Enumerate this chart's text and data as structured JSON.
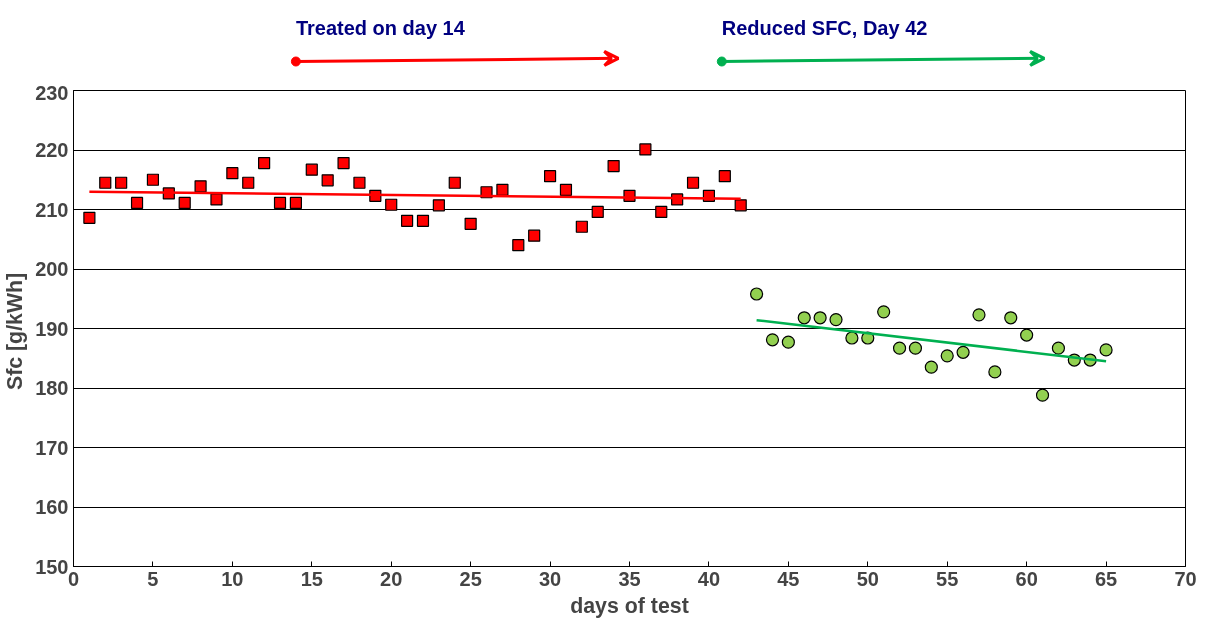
{
  "chart_data": {
    "type": "scatter",
    "xlabel": "days of test",
    "ylabel": "Sfc  [g/kWh]",
    "xlim": [
      0,
      70
    ],
    "ylim": [
      150,
      230
    ],
    "xticks": [
      0,
      5,
      10,
      15,
      20,
      25,
      30,
      35,
      40,
      45,
      50,
      55,
      60,
      65,
      70
    ],
    "yticks": [
      150,
      160,
      170,
      180,
      190,
      200,
      210,
      220,
      230
    ],
    "grid": "y",
    "annotations": [
      "Treated on day 14",
      "Reduced SFC, Day 42"
    ],
    "series": [
      {
        "marker": "square",
        "color": "#ff0000",
        "x": [
          1,
          2,
          3,
          4,
          5,
          6,
          7,
          8,
          9,
          10,
          11,
          12,
          13,
          14,
          15,
          16,
          17,
          18,
          19,
          20,
          21,
          22,
          23,
          24,
          25,
          26,
          27,
          28,
          29,
          30,
          31,
          32,
          33,
          34,
          35,
          36,
          37,
          38,
          39,
          40,
          41,
          42
        ],
        "values": [
          208.6,
          214.5,
          214.5,
          211.1,
          215.0,
          212.7,
          211.1,
          213.9,
          211.7,
          216.1,
          214.5,
          217.8,
          211.1,
          211.1,
          216.7,
          214.9,
          217.8,
          214.5,
          212.3,
          210.8,
          208.1,
          208.1,
          210.7,
          214.5,
          207.6,
          212.9,
          213.3,
          204.0,
          205.6,
          215.6,
          213.3,
          207.1,
          209.6,
          217.3,
          212.3,
          220.1,
          209.6,
          211.7,
          214.5,
          212.3,
          215.6,
          210.7
        ]
      },
      {
        "marker": "circle",
        "color": "#92d050",
        "x": [
          43,
          44,
          45,
          46,
          47,
          48,
          49,
          50,
          51,
          52,
          53,
          54,
          55,
          56,
          57,
          58,
          59,
          60,
          61,
          62,
          63,
          64,
          65
        ],
        "values": [
          195.8,
          188.1,
          187.7,
          191.8,
          191.8,
          191.5,
          188.4,
          188.4,
          192.8,
          186.7,
          186.7,
          183.5,
          185.4,
          186.0,
          192.3,
          182.7,
          191.8,
          188.9,
          178.8,
          186.7,
          184.7,
          184.7,
          186.4
        ]
      },
      {
        "type": "line",
        "color": "#ff0000",
        "x": [
          1,
          42
        ],
        "values": [
          213.0,
          211.8
        ]
      },
      {
        "type": "line",
        "color": "#00b050",
        "x": [
          43,
          65
        ],
        "values": [
          191.4,
          184.5
        ]
      }
    ]
  }
}
